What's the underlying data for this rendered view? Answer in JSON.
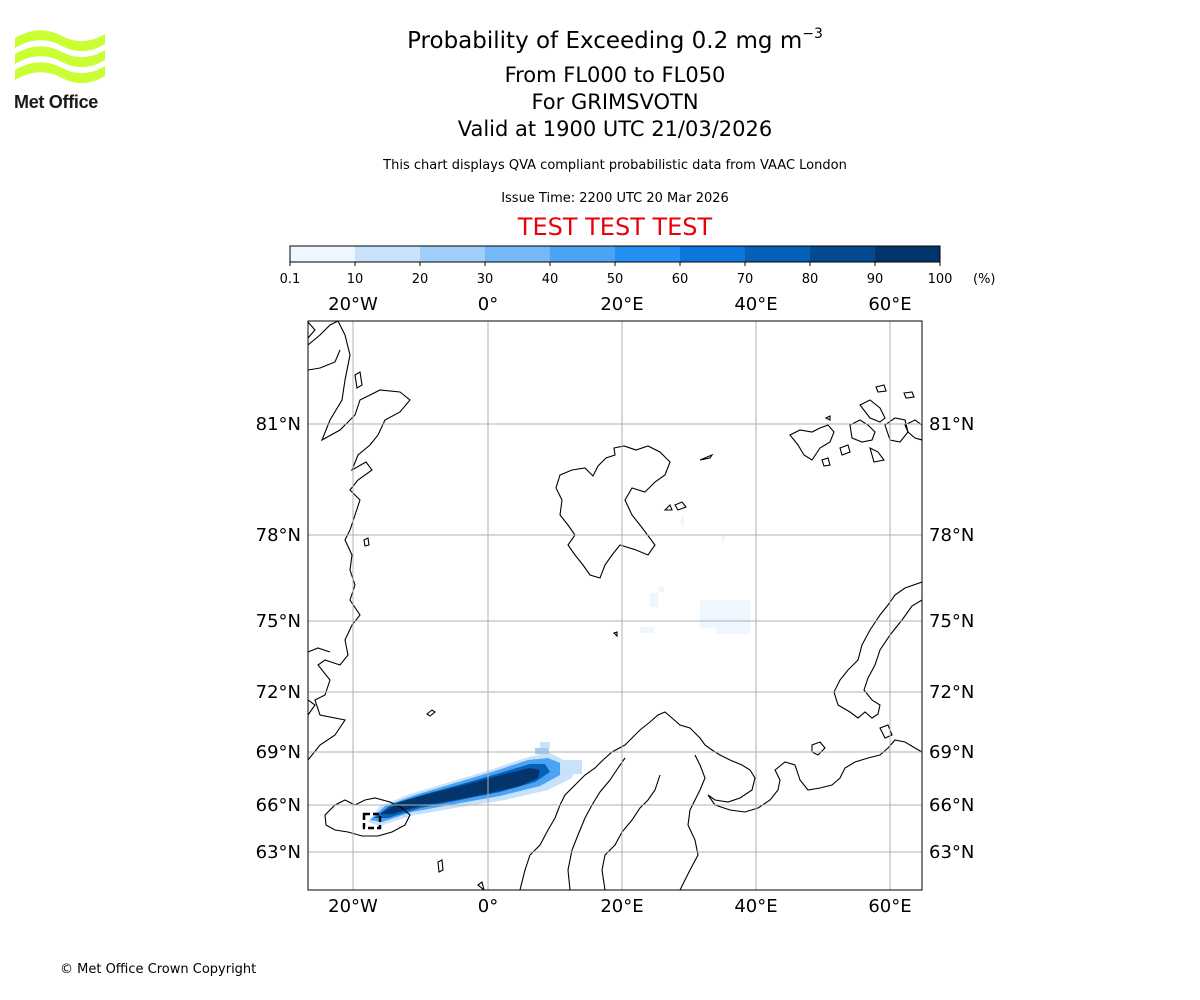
{
  "header": {
    "title_prefix": "Probability of Exceeding 0.2 mg m",
    "title_exponent": "−3",
    "level_range": "From FL000 to FL050",
    "volcano": "For GRIMSVOTN",
    "valid_time": "Valid at 1900 UTC 21/03/2026",
    "description": "This chart displays QVA compliant probabilistic data from VAAC London",
    "issue_time": "Issue Time: 2200 UTC 20 Mar 2026",
    "test_banner": "TEST TEST TEST"
  },
  "logo": {
    "text": "Met Office",
    "color": "#ccff33"
  },
  "colorbar": {
    "ticks": [
      "0.1",
      "10",
      "20",
      "30",
      "40",
      "50",
      "60",
      "70",
      "80",
      "90",
      "100"
    ],
    "unit": "(%)",
    "colors": [
      "#eef6ff",
      "#c8e2fb",
      "#a1cef8",
      "#76b8f5",
      "#4ca3f3",
      "#2590ef",
      "#0b77dd",
      "#0560b8",
      "#044a92",
      "#03346b"
    ]
  },
  "map": {
    "lon_labels": [
      "20°W",
      "0°",
      "20°E",
      "40°E",
      "60°E"
    ],
    "lat_labels": [
      "81°N",
      "78°N",
      "75°N",
      "72°N",
      "69°N",
      "66°N",
      "63°N"
    ],
    "gridlines": true
  },
  "footer": {
    "copyright": "© Met Office Crown Copyright"
  }
}
